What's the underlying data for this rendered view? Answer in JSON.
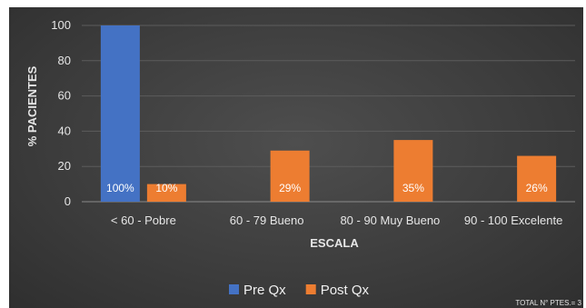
{
  "chart_data": {
    "type": "bar",
    "title": "",
    "xlabel": "ESCALA",
    "ylabel": "% PACIENTES",
    "ylim": [
      0,
      100
    ],
    "yticks": [
      0,
      20,
      40,
      60,
      80,
      100
    ],
    "categories": [
      "< 60 - Pobre",
      "60 - 79 Bueno",
      "80 - 90 Muy Bueno",
      "90 - 100 Excelente"
    ],
    "series": [
      {
        "name": "Pre Qx",
        "values": [
          100,
          0,
          0,
          0
        ],
        "labels": [
          "100%",
          "",
          "",
          ""
        ],
        "color": "#4472c4"
      },
      {
        "name": "Post Qx",
        "values": [
          10,
          29,
          35,
          26
        ],
        "labels": [
          "10%",
          "29%",
          "35%",
          "26%"
        ],
        "color": "#ed7d31"
      }
    ],
    "grid": true,
    "legend_position": "bottom",
    "footnote": "TOTAL N° PTES.= 3"
  }
}
